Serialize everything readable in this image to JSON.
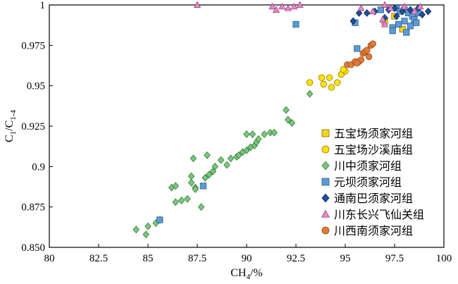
{
  "chart_data": {
    "type": "scatter",
    "xlabel": "CH",
    "xlabel_sub": "4",
    "xlabel_tail": "/%",
    "ylabel_main": "C",
    "ylabel_sub1": "1",
    "ylabel_mid": "/C",
    "ylabel_sub2": "1-4",
    "xlim": [
      80,
      100
    ],
    "ylim": [
      0.85,
      1.0
    ],
    "xticks": [
      {
        "value": 80,
        "label": "80"
      },
      {
        "value": 82.5,
        "label": "82.5"
      },
      {
        "value": 85,
        "label": "85"
      },
      {
        "value": 87.5,
        "label": "87.5"
      },
      {
        "value": 90,
        "label": "90"
      },
      {
        "value": 92.5,
        "label": "92.5"
      },
      {
        "value": 95,
        "label": "95"
      },
      {
        "value": 97.5,
        "label": "97.5"
      },
      {
        "value": 100,
        "label": "100"
      }
    ],
    "yticks": [
      {
        "value": 0.85,
        "label": "0.850"
      },
      {
        "value": 0.875,
        "label": "0.875"
      },
      {
        "value": 0.9,
        "label": "0.9"
      },
      {
        "value": 0.925,
        "label": "0.925"
      },
      {
        "value": 0.95,
        "label": "0.95"
      },
      {
        "value": 0.975,
        "label": "0.975"
      },
      {
        "value": 1.0,
        "label": "1"
      }
    ],
    "legend_position": "bottom-right",
    "series": [
      {
        "name": "五宝场须家河组",
        "marker": "square",
        "color": "#f7d21e",
        "stroke": "#8a6d00",
        "points": [
          [
            97.0,
            0.99
          ],
          [
            97.9,
            0.985
          ],
          [
            97.5,
            0.993
          ]
        ]
      },
      {
        "name": "五宝场沙溪庙组",
        "marker": "circle",
        "color": "#ffe400",
        "stroke": "#9a7a00",
        "points": [
          [
            93.2,
            0.952
          ],
          [
            93.8,
            0.955
          ],
          [
            93.9,
            0.951
          ],
          [
            94.2,
            0.955
          ],
          [
            94.3,
            0.949
          ],
          [
            94.6,
            0.952
          ],
          [
            94.8,
            0.957
          ],
          [
            95.0,
            0.959
          ],
          [
            94.9,
            0.96
          ]
        ]
      },
      {
        "name": "川中须家河组",
        "marker": "diamond",
        "color": "#7bc67e",
        "stroke": "#2f7a35",
        "points": [
          [
            84.4,
            0.861
          ],
          [
            84.9,
            0.858
          ],
          [
            85.0,
            0.863
          ],
          [
            85.4,
            0.865
          ],
          [
            85.6,
            0.867
          ],
          [
            86.4,
            0.878
          ],
          [
            86.7,
            0.879
          ],
          [
            87.0,
            0.88
          ],
          [
            86.2,
            0.887
          ],
          [
            86.4,
            0.888
          ],
          [
            87.2,
            0.89
          ],
          [
            87.4,
            0.887
          ],
          [
            87.2,
            0.894
          ],
          [
            87.4,
            0.886
          ],
          [
            87.7,
            0.875
          ],
          [
            87.9,
            0.893
          ],
          [
            88.1,
            0.895
          ],
          [
            88.4,
            0.9
          ],
          [
            88.3,
            0.897
          ],
          [
            88.7,
            0.904
          ],
          [
            89.0,
            0.901
          ],
          [
            89.2,
            0.905
          ],
          [
            89.5,
            0.906
          ],
          [
            89.6,
            0.907
          ],
          [
            89.8,
            0.909
          ],
          [
            90.0,
            0.91
          ],
          [
            90.2,
            0.912
          ],
          [
            90.4,
            0.913
          ],
          [
            90.5,
            0.915
          ],
          [
            90.0,
            0.92
          ],
          [
            90.3,
            0.92
          ],
          [
            90.9,
            0.92
          ],
          [
            91.2,
            0.921
          ],
          [
            91.4,
            0.921
          ],
          [
            87.3,
            0.905
          ],
          [
            88.0,
            0.907
          ],
          [
            90.6,
            0.917
          ],
          [
            92.1,
            0.929
          ],
          [
            92.0,
            0.935
          ],
          [
            92.3,
            0.927
          ],
          [
            93.2,
            0.945
          ]
        ]
      },
      {
        "name": "元坝须家河组",
        "marker": "square",
        "color": "#5b9bd5",
        "stroke": "#2e5f8a",
        "points": [
          [
            85.6,
            0.867
          ],
          [
            87.8,
            0.888
          ],
          [
            92.5,
            0.988
          ],
          [
            95.6,
            0.973
          ],
          [
            95.5,
            0.989
          ],
          [
            96.8,
            0.997
          ],
          [
            97.6,
            0.998
          ],
          [
            97.8,
            0.996
          ],
          [
            98.0,
            0.997
          ],
          [
            98.2,
            0.995
          ],
          [
            98.4,
            0.993
          ],
          [
            98.5,
            0.991
          ],
          [
            98.0,
            0.99
          ],
          [
            97.7,
            0.988
          ],
          [
            97.4,
            0.986
          ],
          [
            98.3,
            0.987
          ],
          [
            98.6,
            0.989
          ],
          [
            98.1,
            0.983
          ],
          [
            97.4,
            0.984
          ],
          [
            98.7,
            0.995
          ]
        ]
      },
      {
        "name": "通南巴须家河组",
        "marker": "diamond",
        "color": "#1f4e9e",
        "stroke": "#0d2a5c",
        "points": [
          [
            95.4,
            0.99
          ],
          [
            95.7,
            0.995
          ],
          [
            96.1,
            0.995
          ],
          [
            96.5,
            0.996
          ],
          [
            97.2,
            0.997
          ],
          [
            97.5,
            0.998
          ],
          [
            97.9,
            0.996
          ],
          [
            98.3,
            0.997
          ],
          [
            98.9,
            0.994
          ],
          [
            99.2,
            0.996
          ],
          [
            97.0,
            0.992
          ],
          [
            97.6,
            0.993
          ],
          [
            98.7,
            0.998
          ]
        ]
      },
      {
        "name": "川东长兴飞仙关组",
        "marker": "triangle",
        "color": "#e58bc7",
        "stroke": "#9b3d7f",
        "points": [
          [
            87.5,
            1.0
          ],
          [
            91.3,
            0.999
          ],
          [
            91.5,
            0.997
          ],
          [
            91.8,
            0.999
          ],
          [
            92.1,
            0.998
          ],
          [
            92.4,
            0.999
          ],
          [
            92.7,
            1.0
          ],
          [
            95.8,
            0.998
          ],
          [
            96.4,
            0.996
          ],
          [
            97.0,
            1.0
          ],
          [
            97.3,
            0.998
          ],
          [
            98.0,
            0.999
          ],
          [
            98.8,
            0.999
          ],
          [
            98.5,
            0.996
          ],
          [
            97.0,
            0.988
          ],
          [
            96.9,
            0.991
          ]
        ]
      },
      {
        "name": "川西南须家河组",
        "marker": "circle",
        "color": "#e07b39",
        "stroke": "#9a4a15",
        "points": [
          [
            95.1,
            0.963
          ],
          [
            95.3,
            0.963
          ],
          [
            95.5,
            0.965
          ],
          [
            95.7,
            0.965
          ],
          [
            95.8,
            0.966
          ],
          [
            95.9,
            0.97
          ],
          [
            96.0,
            0.971
          ],
          [
            96.1,
            0.972
          ],
          [
            96.3,
            0.975
          ],
          [
            96.4,
            0.976
          ],
          [
            96.2,
            0.968
          ],
          [
            95.6,
            0.964
          ]
        ]
      }
    ]
  }
}
